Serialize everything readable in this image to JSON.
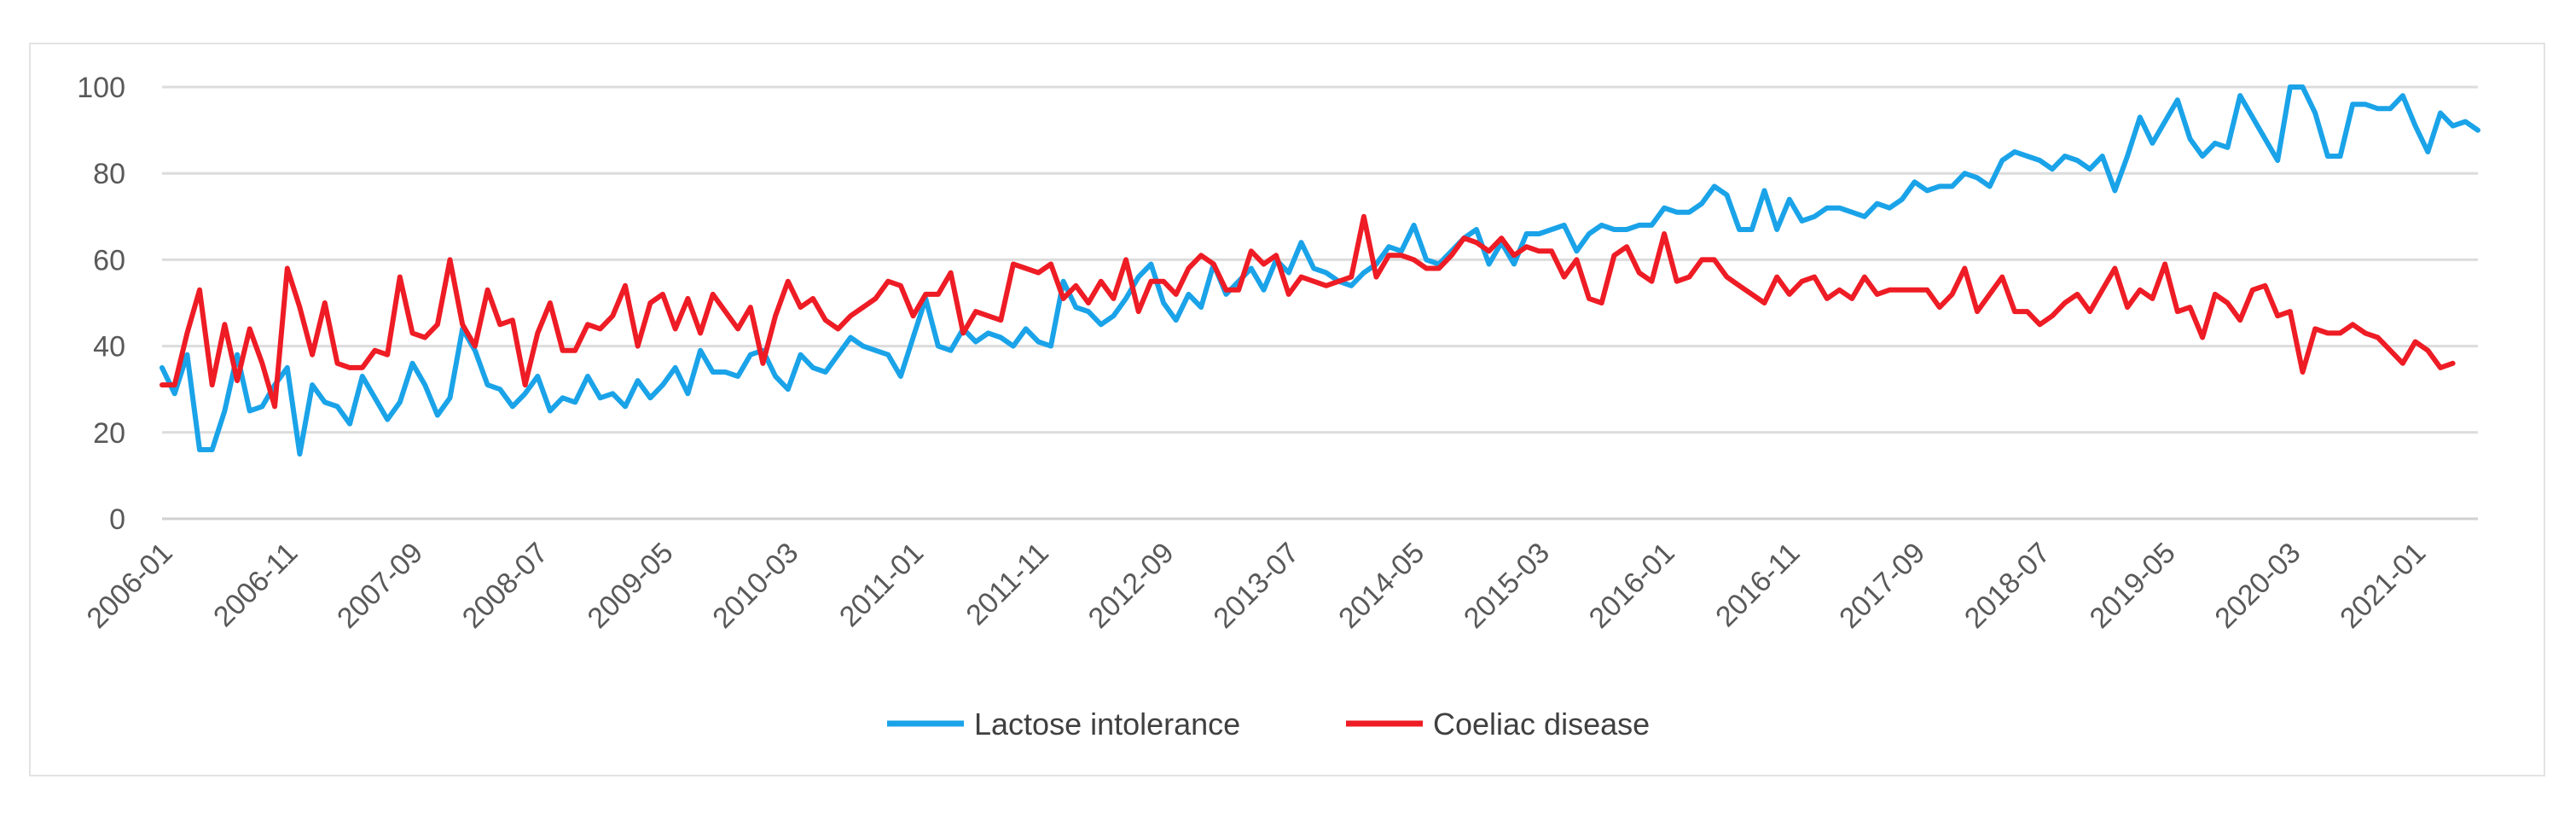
{
  "chart_data": {
    "type": "line",
    "title": "",
    "xlabel": "",
    "ylabel": "",
    "ylim": [
      0,
      100
    ],
    "y_ticks": [
      0,
      20,
      40,
      60,
      80,
      100
    ],
    "grid": true,
    "legend_position": "bottom-center",
    "x_tick_labels": [
      "2006-01",
      "2006-11",
      "2007-09",
      "2008-07",
      "2009-05",
      "2010-03",
      "2011-01",
      "2011-11",
      "2012-09",
      "2013-07",
      "2014-05",
      "2015-03",
      "2016-01",
      "2016-11",
      "2017-09",
      "2018-07",
      "2019-05",
      "2020-03",
      "2021-01"
    ],
    "x_tick_step_months": 10,
    "start_month": "2006-01",
    "series": [
      {
        "name": "Lactose intolerance",
        "color": "#1aa3e8",
        "values": [
          35,
          29,
          38,
          16,
          16,
          25,
          38,
          25,
          26,
          31,
          35,
          15,
          31,
          27,
          26,
          22,
          33,
          28,
          23,
          27,
          36,
          31,
          24,
          28,
          44,
          39,
          31,
          30,
          26,
          29,
          33,
          25,
          28,
          27,
          33,
          28,
          29,
          26,
          32,
          28,
          31,
          35,
          29,
          39,
          34,
          34,
          33,
          38,
          39,
          33,
          30,
          38,
          35,
          34,
          38,
          42,
          40,
          39,
          38,
          33,
          42,
          51,
          40,
          39,
          44,
          41,
          43,
          42,
          40,
          44,
          41,
          40,
          55,
          49,
          48,
          45,
          47,
          51,
          56,
          59,
          50,
          46,
          52,
          49,
          59,
          52,
          55,
          58,
          53,
          60,
          57,
          64,
          58,
          57,
          55,
          54,
          57,
          59,
          63,
          62,
          68,
          60,
          59,
          62,
          65,
          67,
          59,
          64,
          59,
          66,
          66,
          67,
          68,
          62,
          66,
          68,
          67,
          67,
          68,
          68,
          72,
          71,
          71,
          73,
          77,
          75,
          67,
          67,
          76,
          67,
          74,
          69,
          70,
          72,
          72,
          71,
          70,
          73,
          72,
          74,
          78,
          76,
          77,
          77,
          80,
          79,
          77,
          83,
          85,
          84,
          83,
          81,
          84,
          83,
          81,
          84,
          76,
          84,
          93,
          87,
          92,
          97,
          88,
          84,
          87,
          86,
          98,
          93,
          88,
          83,
          100,
          100,
          94,
          84,
          84,
          96,
          96,
          95,
          95,
          98,
          91,
          85,
          94,
          91,
          92,
          90
        ],
        "y_ticks_note": ""
      },
      {
        "name": "Coeliac disease",
        "color": "#ee1c25",
        "values": [
          31,
          31,
          43,
          53,
          31,
          45,
          32,
          44,
          36,
          26,
          58,
          49,
          38,
          50,
          36,
          35,
          35,
          39,
          38,
          56,
          43,
          42,
          45,
          60,
          45,
          40,
          53,
          45,
          46,
          31,
          43,
          50,
          39,
          39,
          45,
          44,
          47,
          54,
          40,
          50,
          52,
          44,
          51,
          43,
          52,
          48,
          44,
          49,
          36,
          47,
          55,
          49,
          51,
          46,
          44,
          47,
          49,
          51,
          55,
          54,
          47,
          52,
          52,
          57,
          43,
          48,
          47,
          46,
          59,
          58,
          57,
          59,
          51,
          54,
          50,
          55,
          51,
          60,
          48,
          55,
          55,
          52,
          58,
          61,
          59,
          53,
          53,
          62,
          59,
          61,
          52,
          56,
          55,
          54,
          55,
          56,
          70,
          56,
          61,
          61,
          60,
          58,
          58,
          61,
          65,
          64,
          62,
          65,
          61,
          63,
          62,
          62,
          56,
          60,
          51,
          50,
          61,
          63,
          57,
          55,
          66,
          55,
          56,
          60,
          60,
          56,
          54,
          52,
          50,
          56,
          52,
          55,
          56,
          51,
          53,
          51,
          56,
          52,
          53,
          53,
          53,
          53,
          49,
          52,
          58,
          48,
          52,
          56,
          48,
          48,
          45,
          47,
          50,
          52,
          48,
          53,
          58,
          49,
          53,
          51,
          59,
          48,
          49,
          42,
          52,
          50,
          46,
          53,
          54,
          47,
          48,
          34,
          44,
          43,
          43,
          45,
          43,
          42,
          39,
          36,
          41,
          39,
          35,
          36
        ]
      }
    ]
  }
}
